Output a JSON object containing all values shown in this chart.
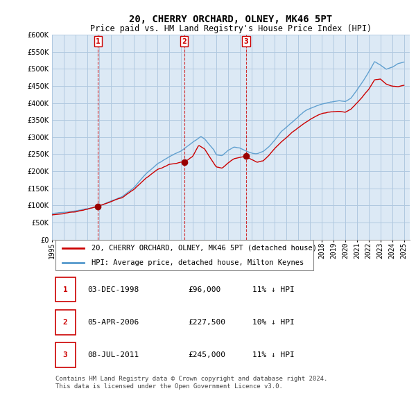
{
  "title": "20, CHERRY ORCHARD, OLNEY, MK46 5PT",
  "subtitle": "Price paid vs. HM Land Registry's House Price Index (HPI)",
  "ylim": [
    0,
    600000
  ],
  "yticks": [
    0,
    50000,
    100000,
    150000,
    200000,
    250000,
    300000,
    350000,
    400000,
    450000,
    500000,
    550000,
    600000
  ],
  "bg_color": "#ffffff",
  "chart_bg_color": "#dce9f5",
  "grid_color": "#b0c8e0",
  "red_color": "#cc0000",
  "blue_color": "#5599cc",
  "sale_marker_color": "#990000",
  "sale_dates_float": [
    1998.92,
    2006.27,
    2011.54
  ],
  "sale_prices": [
    96000,
    227500,
    245000
  ],
  "sale_labels": [
    "1",
    "2",
    "3"
  ],
  "legend_red": "20, CHERRY ORCHARD, OLNEY, MK46 5PT (detached house)",
  "legend_blue": "HPI: Average price, detached house, Milton Keynes",
  "table_rows": [
    [
      "1",
      "03-DEC-1998",
      "£96,000",
      "11% ↓ HPI"
    ],
    [
      "2",
      "05-APR-2006",
      "£227,500",
      "10% ↓ HPI"
    ],
    [
      "3",
      "08-JUL-2011",
      "£245,000",
      "11% ↓ HPI"
    ]
  ],
  "footer": "Contains HM Land Registry data © Crown copyright and database right 2024.\nThis data is licensed under the Open Government Licence v3.0.",
  "title_fontsize": 10,
  "subtitle_fontsize": 8.5,
  "tick_fontsize": 7,
  "legend_fontsize": 7.5,
  "table_fontsize": 8,
  "footer_fontsize": 6.5
}
